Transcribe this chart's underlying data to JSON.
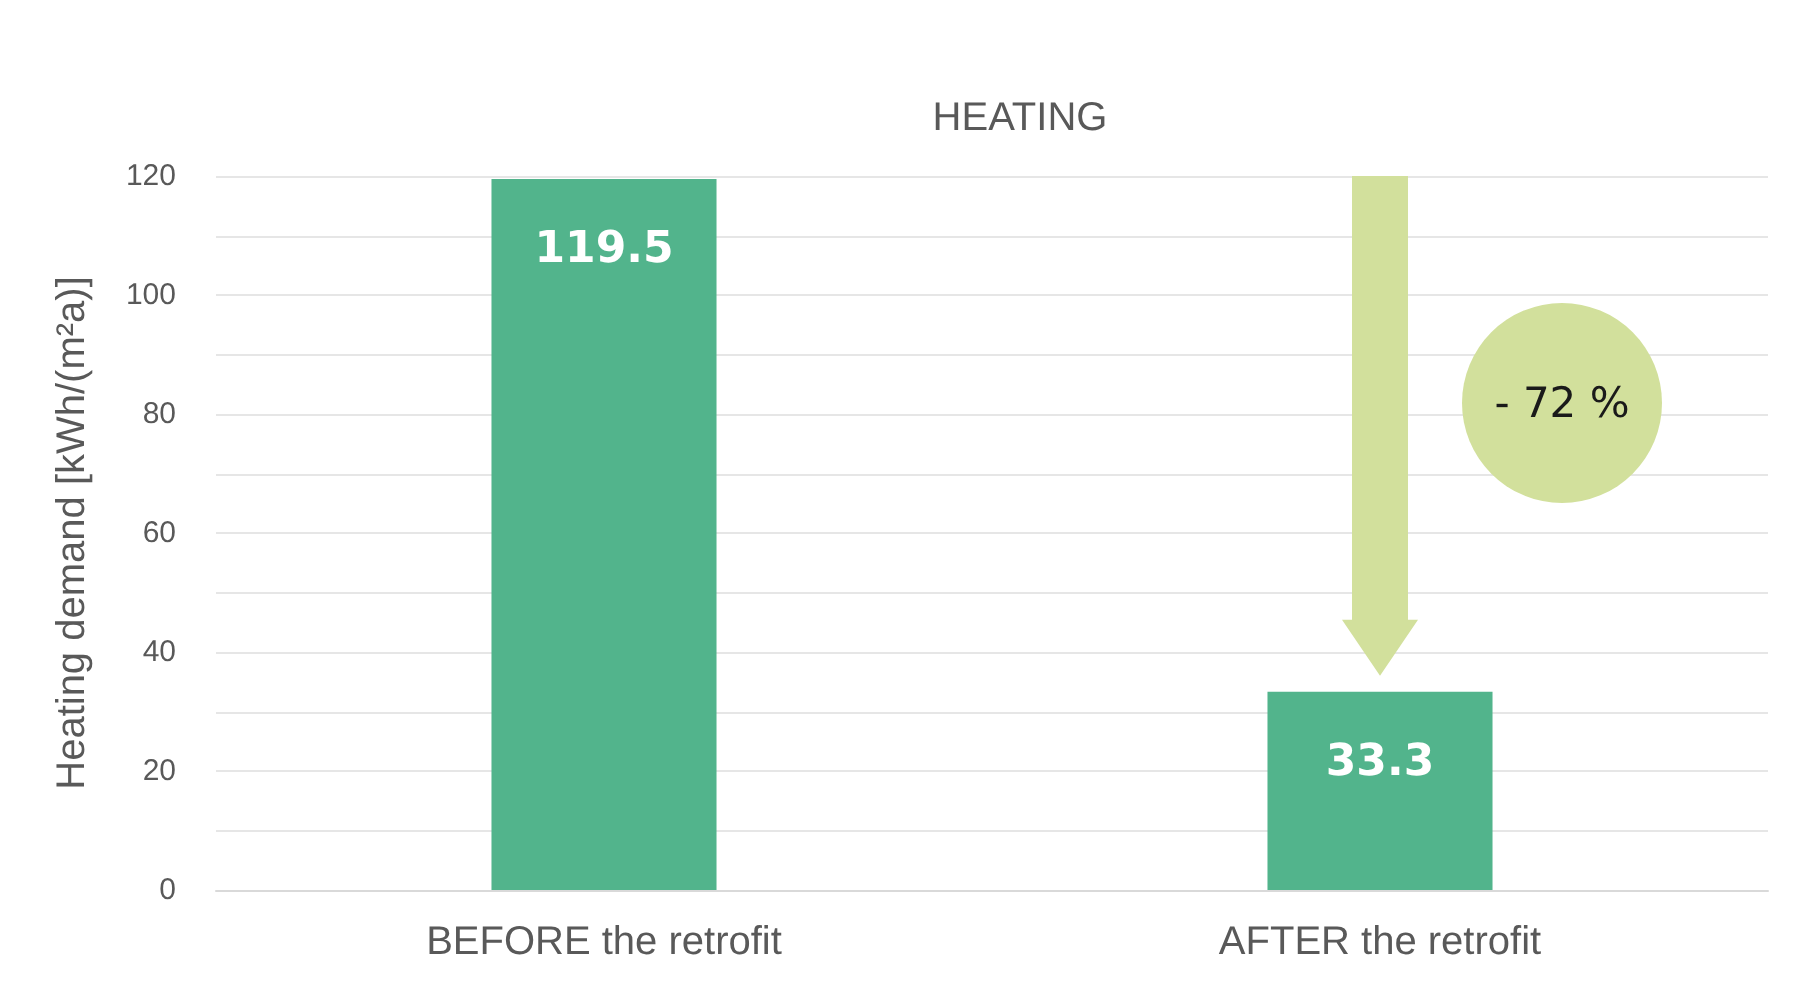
{
  "chart_data": {
    "type": "bar",
    "title": "HEATING",
    "ylabel": "Heating demand [kWh/(m²a)]",
    "categories": [
      "BEFORE the retrofit",
      "AFTER the retrofit"
    ],
    "values": [
      119.5,
      33.3
    ],
    "color": "#52b48c",
    "ylim": [
      0,
      120
    ],
    "yticks": [
      0,
      {
        "value": 10,
        "label": null
      },
      20,
      {
        "value": 30,
        "label": null
      },
      40,
      {
        "value": 50,
        "label": null
      },
      60,
      {
        "value": 70,
        "label": null
      },
      80,
      {
        "value": 90,
        "label": null
      },
      100,
      {
        "value": 110,
        "label": null
      },
      120
    ],
    "grid": true,
    "data_labels": true,
    "annotations": [
      "- 72 %"
    ]
  }
}
